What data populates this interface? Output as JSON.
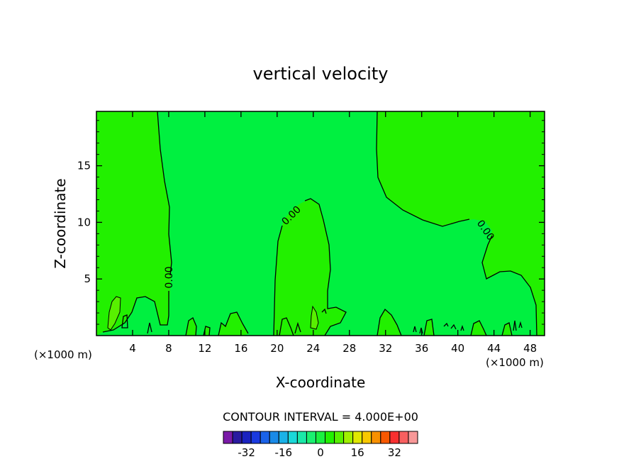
{
  "chart_data": {
    "type": "contour",
    "title": "vertical velocity",
    "xlabel": "X-coordinate",
    "ylabel": "Z-coordinate",
    "xunit": "(×1000 m)",
    "xlim": [
      0,
      49.6
    ],
    "ylim": [
      0,
      19.8
    ],
    "xticks": [
      4,
      8,
      12,
      16,
      20,
      24,
      28,
      32,
      36,
      40,
      44,
      48
    ],
    "yticks": [
      5,
      10,
      15
    ],
    "xtick_labels": [
      "4",
      "8",
      "12",
      "16",
      "20",
      "24",
      "28",
      "32",
      "36",
      "40",
      "44",
      "48"
    ],
    "ytick_labels": [
      "5",
      "10",
      "15"
    ],
    "contour_labels": [
      {
        "text": "0.00",
        "x": 8.3,
        "y": 5.3
      },
      {
        "text": "0.00",
        "x": 22.5,
        "y": 10.5
      },
      {
        "text": "0.00",
        "x": 42.8,
        "y": 9.0
      }
    ],
    "contour_interval_text": "CONTOUR INTERVAL = 4.000E+00",
    "colorbar": {
      "labels": [
        "-32",
        "-16",
        "0",
        "16",
        "32"
      ],
      "label_values": [
        -32,
        -16,
        0,
        16,
        32
      ],
      "colors": [
        "#7a1aa8",
        "#2a1aa0",
        "#1a22c0",
        "#1a3ae0",
        "#1a62e8",
        "#1a8ae8",
        "#1ab2e8",
        "#1ad8d8",
        "#1ae8a8",
        "#1af070",
        "#1af040",
        "#22f000",
        "#58f000",
        "#a0f000",
        "#e0e800",
        "#f8c800",
        "#f89000",
        "#f85800",
        "#f83030",
        "#f86060",
        "#f89898"
      ]
    }
  }
}
